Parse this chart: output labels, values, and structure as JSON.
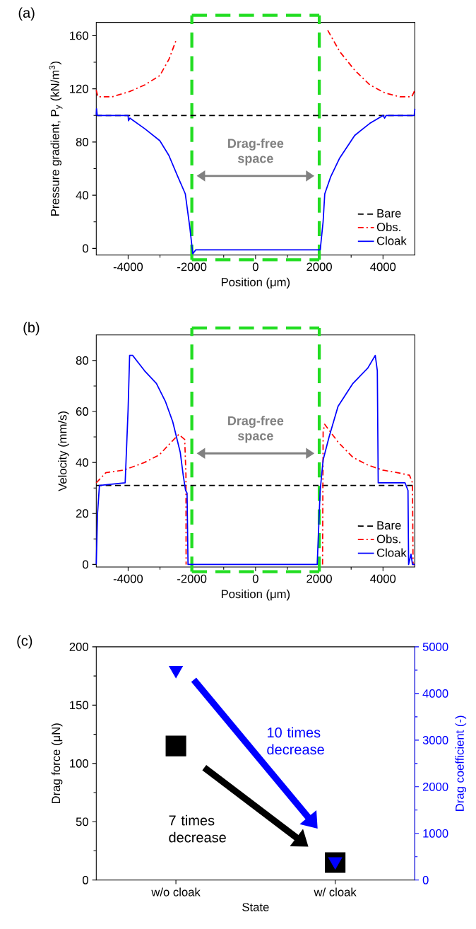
{
  "chart_data": [
    {
      "type": "line",
      "title": "(a)",
      "xlabel": "Position (μm)",
      "ylabel": "Pressure gradient, P$_{y}$ (kN/m$^{3}$)",
      "xlim": [
        -5000,
        5000
      ],
      "xticks": [
        -4000,
        -2000,
        0,
        2000,
        4000
      ],
      "ylim": [
        -5,
        170
      ],
      "yticks": [
        0,
        40,
        80,
        120,
        160
      ],
      "legend": "bottom right",
      "annotations": [
        "Drag-free space"
      ],
      "ref_lines": [
        {
          "axis": "x",
          "value": -2000,
          "color": "#22dd22",
          "line_style": "dashed"
        },
        {
          "axis": "x",
          "value": 2000,
          "color": "#22dd22",
          "line_style": "dashed"
        }
      ],
      "series": [
        {
          "name": "Bare",
          "color": "#000000",
          "line_style": "dashed",
          "x": [
            -5000,
            5000
          ],
          "values": [
            100,
            100
          ]
        },
        {
          "name": "Obs.",
          "color": "#ff0000",
          "line_style": "dashdot",
          "x": [
            -5000,
            -4950,
            -4500,
            -3950,
            -3475,
            -3005,
            -2722,
            -2487,
            -2390,
            0,
            2172,
            2266,
            2642,
            3113,
            3584,
            4054,
            4525,
            4901,
            5000
          ],
          "values": [
            119,
            114,
            114,
            118,
            123,
            130,
            142,
            157,
            null,
            null,
            null,
            164,
            148,
            134,
            123,
            117,
            114,
            114,
            119
          ]
        },
        {
          "name": "Cloak",
          "color": "#0000ff",
          "line_style": "solid",
          "x": [
            -5000,
            -4990,
            -4970,
            -4000,
            -3990,
            -3946,
            -3475,
            -3005,
            -2722,
            -2440,
            -2205,
            -2064,
            -1970,
            -1875,
            1900,
            2030,
            2120,
            2172,
            2360,
            2642,
            3113,
            3584,
            4007,
            4050,
            4100,
            4980,
            5000
          ],
          "values": [
            100,
            105,
            100,
            100,
            96,
            98,
            90,
            81,
            70,
            54,
            41,
            16,
            -4,
            -1,
            -1,
            -1,
            20,
            41,
            54,
            68,
            85,
            94,
            100,
            98,
            100,
            100,
            105
          ]
        }
      ]
    },
    {
      "type": "line",
      "title": "(b)",
      "xlabel": "Position (μm)",
      "ylabel": "Velocity (mm/s)",
      "xlim": [
        -5000,
        5000
      ],
      "xticks": [
        -4000,
        -2000,
        0,
        2000,
        4000
      ],
      "ylim": [
        -1,
        90
      ],
      "yticks": [
        0,
        20,
        40,
        60,
        80
      ],
      "legend": "bottom right",
      "annotations": [
        "Drag-free space"
      ],
      "ref_lines": [
        {
          "axis": "x",
          "value": -2000,
          "color": "#22dd22",
          "line_style": "dashed"
        },
        {
          "axis": "x",
          "value": 2000,
          "color": "#22dd22",
          "line_style": "dashed"
        }
      ],
      "series": [
        {
          "name": "Bare",
          "color": "#000000",
          "line_style": "dashed",
          "x": [
            -5000,
            5000
          ],
          "values": [
            31,
            31
          ]
        },
        {
          "name": "Obs.",
          "color": "#ff0000",
          "line_style": "dashdot",
          "x": [
            -5000,
            -4700,
            -4140,
            -3486,
            -3019,
            -2645,
            -2411,
            -2224,
            -2185,
            -2180,
            0,
            2103,
            2121,
            2168,
            2589,
            3056,
            3523,
            3991,
            4458,
            4832,
            4925,
            4944,
            5000
          ],
          "values": [
            32,
            36,
            37,
            40,
            43,
            48,
            51,
            49,
            35,
            0,
            null,
            0,
            52,
            55,
            48,
            42,
            39,
            37,
            36,
            35,
            32,
            0,
            0
          ]
        },
        {
          "name": "Cloak",
          "color": "#0000ff",
          "line_style": "solid",
          "x": [
            -5000,
            -4960,
            -4900,
            -4093,
            -4000,
            -3953,
            -3860,
            -3486,
            -3112,
            -2832,
            -2600,
            -2364,
            -2271,
            -2196,
            -2150,
            -2120,
            1935,
            2028,
            2121,
            2308,
            2589,
            3056,
            3523,
            3757,
            3822,
            3850,
            3944,
            4692,
            4785,
            4804,
            4879,
            4925,
            5000
          ],
          "values": [
            0,
            20,
            31,
            32,
            61,
            82,
            82,
            76,
            71,
            64,
            56,
            44,
            35,
            29,
            28,
            0,
            0,
            29,
            41,
            50,
            62,
            71,
            77,
            82,
            76,
            32,
            32,
            32,
            29,
            0,
            4,
            0,
            0
          ]
        }
      ]
    },
    {
      "type": "scatter",
      "title": "(c)",
      "xlabel": "State",
      "ylabel": "Drag force (μN)",
      "y2label": "Drag coefficient (-)",
      "categories": [
        "w/o cloak",
        "w/ cloak"
      ],
      "ylim": [
        0,
        200
      ],
      "yticks": [
        0,
        50,
        100,
        150,
        200
      ],
      "y2lim": [
        0,
        5000
      ],
      "y2ticks": [
        0,
        1000,
        2000,
        3000,
        4000,
        5000
      ],
      "annotations": [
        "7 times decrease",
        "10 times decrease"
      ],
      "series": [
        {
          "color": "#000000",
          "marker": "square",
          "values": [
            115,
            15
          ]
        },
        {
          "color": "#0000ff",
          "marker": "triangle",
          "axis": "y2",
          "values": [
            4500,
            400
          ]
        }
      ]
    }
  ]
}
